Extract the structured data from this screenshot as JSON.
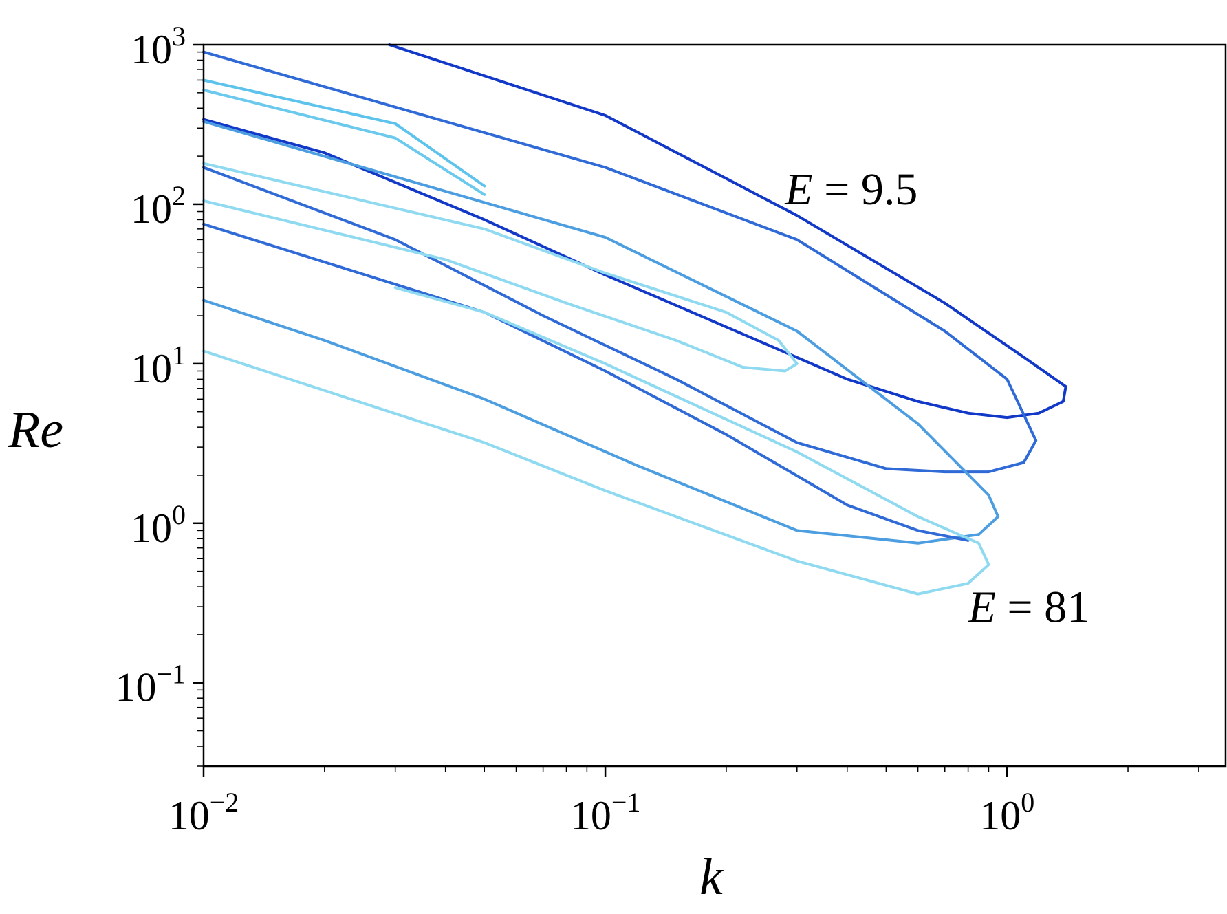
{
  "chart_data": {
    "type": "line",
    "xscale": "log",
    "yscale": "log",
    "xlim": [
      0.01,
      3.5
    ],
    "ylim": [
      0.03,
      1000
    ],
    "xlabel": "k",
    "ylabel": "Re",
    "xticks": [
      {
        "value": 0.01,
        "base": "10",
        "exp": "−2"
      },
      {
        "value": 0.1,
        "base": "10",
        "exp": "−1"
      },
      {
        "value": 1,
        "base": "10",
        "exp": "0"
      }
    ],
    "yticks": [
      {
        "value": 0.1,
        "base": "10",
        "exp": "−1"
      },
      {
        "value": 1,
        "base": "10",
        "exp": "0"
      },
      {
        "value": 10,
        "base": "10",
        "exp": "1"
      },
      {
        "value": 100,
        "base": "10",
        "exp": "2"
      },
      {
        "value": 1000,
        "base": "10",
        "exp": "3"
      }
    ],
    "grid": false,
    "legend": "none",
    "annotations": [
      {
        "var": "E",
        "rest": " = 9.5",
        "k": 0.28,
        "re": 100
      },
      {
        "var": "E",
        "rest": " = 81",
        "k": 0.8,
        "re": 0.24
      }
    ],
    "series": [
      {
        "color": "#1238c8",
        "points": [
          [
            0.029,
            1000
          ],
          [
            0.1,
            360
          ],
          [
            0.3,
            85
          ],
          [
            0.7,
            24
          ],
          [
            1.1,
            11
          ],
          [
            1.4,
            7.2
          ],
          [
            1.38,
            5.8
          ],
          [
            1.2,
            4.9
          ],
          [
            1.0,
            4.6
          ],
          [
            0.8,
            4.9
          ],
          [
            0.6,
            5.8
          ],
          [
            0.4,
            8
          ],
          [
            0.2,
            17
          ],
          [
            0.1,
            36
          ],
          [
            0.05,
            80
          ],
          [
            0.02,
            210
          ],
          [
            0.01,
            340
          ]
        ]
      },
      {
        "color": "#2f6ad6",
        "points": [
          [
            0.01,
            900
          ],
          [
            0.1,
            170
          ],
          [
            0.3,
            60
          ],
          [
            0.7,
            16
          ],
          [
            1.0,
            8
          ],
          [
            1.18,
            3.3
          ],
          [
            1.1,
            2.4
          ],
          [
            0.9,
            2.1
          ],
          [
            0.7,
            2.1
          ],
          [
            0.5,
            2.2
          ],
          [
            0.3,
            3.2
          ],
          [
            0.15,
            8
          ],
          [
            0.07,
            20
          ],
          [
            0.03,
            60
          ],
          [
            0.01,
            170
          ]
        ]
      },
      {
        "color": "#5ec3ec",
        "points": [
          [
            0.01,
            600
          ],
          [
            0.03,
            320
          ],
          [
            0.05,
            130
          ]
        ]
      },
      {
        "color": "#6bc9ee",
        "points": [
          [
            0.01,
            520
          ],
          [
            0.03,
            260
          ],
          [
            0.05,
            115
          ]
        ]
      },
      {
        "color": "#4c9ee0",
        "points": [
          [
            0.01,
            330
          ],
          [
            0.1,
            62
          ],
          [
            0.3,
            16
          ],
          [
            0.6,
            4.2
          ],
          [
            0.9,
            1.5
          ],
          [
            0.95,
            1.1
          ],
          [
            0.85,
            0.85
          ],
          [
            0.6,
            0.75
          ],
          [
            0.3,
            0.9
          ],
          [
            0.12,
            2.3
          ],
          [
            0.05,
            6
          ],
          [
            0.02,
            14
          ],
          [
            0.01,
            25
          ]
        ]
      },
      {
        "color": "#8fdaf0",
        "points": [
          [
            0.01,
            180
          ],
          [
            0.05,
            70
          ],
          [
            0.1,
            37
          ],
          [
            0.2,
            21
          ],
          [
            0.27,
            14
          ],
          [
            0.3,
            10
          ],
          [
            0.28,
            9
          ],
          [
            0.22,
            9.5
          ],
          [
            0.15,
            14
          ],
          [
            0.08,
            24
          ],
          [
            0.04,
            45
          ],
          [
            0.01,
            105
          ]
        ]
      },
      {
        "color": "#2f6ad6",
        "points": [
          [
            0.01,
            75
          ],
          [
            0.05,
            21
          ],
          [
            0.1,
            9
          ],
          [
            0.2,
            3.6
          ],
          [
            0.4,
            1.3
          ],
          [
            0.6,
            0.9
          ],
          [
            0.8,
            0.78
          ]
        ]
      },
      {
        "color": "#8fdaf0",
        "points": [
          [
            0.01,
            12
          ],
          [
            0.05,
            3.2
          ],
          [
            0.1,
            1.6
          ],
          [
            0.3,
            0.58
          ],
          [
            0.6,
            0.36
          ],
          [
            0.8,
            0.42
          ],
          [
            0.9,
            0.55
          ],
          [
            0.85,
            0.75
          ],
          [
            0.6,
            1.1
          ],
          [
            0.3,
            2.8
          ],
          [
            0.1,
            10
          ],
          [
            0.05,
            21
          ],
          [
            0.03,
            30
          ]
        ]
      }
    ]
  }
}
